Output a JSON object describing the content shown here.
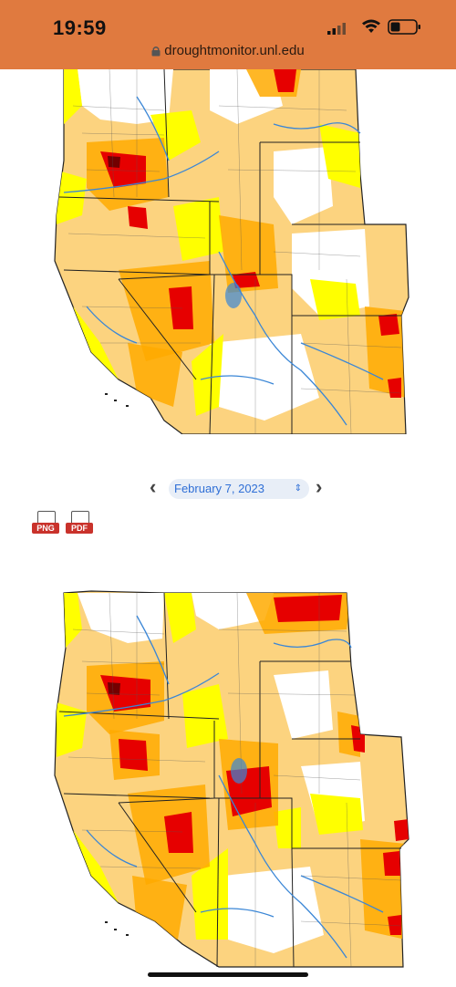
{
  "status_bar": {
    "time": "19:59",
    "url": "droughtmonitor.unl.edu",
    "background": "#e07a3f"
  },
  "date_nav": {
    "prev_label": "‹",
    "next_label": "›",
    "selected_date": "February 7, 2023"
  },
  "downloads": {
    "png_label": "PNG",
    "pdf_label": "PDF"
  },
  "legend_colors": {
    "abnormally_dry": "#ffff00",
    "moderate": "#fcd37f",
    "severe": "#ffaa00",
    "extreme": "#e60000",
    "exceptional": "#730000",
    "rivers": "#3a86d6"
  },
  "icons": {
    "lock": "lock-icon",
    "signal": "cellular-signal-icon",
    "wifi": "wifi-icon",
    "battery": "battery-icon",
    "download": "download-file-icon"
  }
}
